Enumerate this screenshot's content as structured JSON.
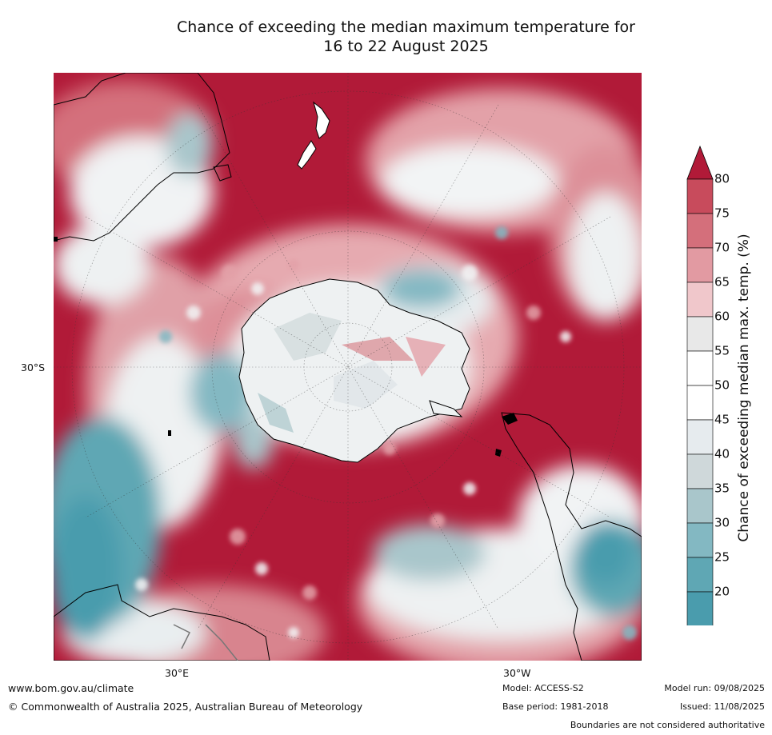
{
  "title": {
    "line1": "Chance of exceeding the median maximum temperature for",
    "line2": "16 to 22 August 2025"
  },
  "map": {
    "lat_label": "30°S",
    "lon_labels": [
      "30°E",
      "30°W"
    ]
  },
  "colorbar": {
    "label": "Chance of exceeding median max. temp. (%)",
    "ticks": [
      "80",
      "75",
      "70",
      "65",
      "60",
      "55",
      "50",
      "45",
      "40",
      "35",
      "30",
      "25",
      "20"
    ],
    "colors": [
      "#b11a38",
      "#c84b5c",
      "#d46f7b",
      "#e29aa2",
      "#f0c7cb",
      "#e8e8e8",
      "#ffffff",
      "#ffffff",
      "#e6ebee",
      "#cfd8da",
      "#a9c6cb",
      "#83b8c2",
      "#5fa7b4",
      "#4a9cad"
    ],
    "over_color": "#b11a38",
    "under_color": "#4a9cad"
  },
  "footer": {
    "website": "www.bom.gov.au/climate",
    "copyright": "© Commonwealth of Australia 2025, Australian Bureau of Meteorology",
    "model": "Model: ACCESS-S2",
    "base_period": "Base period: 1981-2018",
    "model_run": "Model run: 09/08/2025",
    "issued": "Issued: 11/08/2025",
    "disclaimer": "Boundaries are not considered authoritative"
  }
}
